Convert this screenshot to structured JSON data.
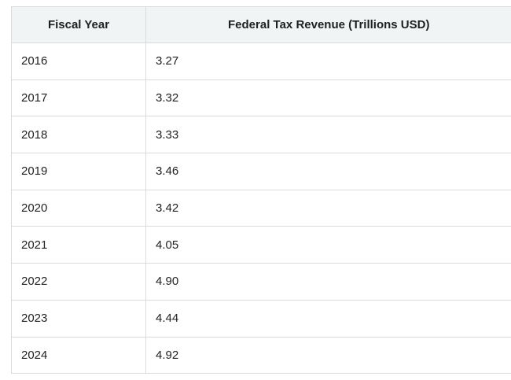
{
  "table": {
    "headers": [
      "Fiscal Year",
      "Federal Tax Revenue (Trillions USD)"
    ],
    "rows": [
      [
        "2016",
        "3.27"
      ],
      [
        "2017",
        "3.32"
      ],
      [
        "2018",
        "3.33"
      ],
      [
        "2019",
        "3.46"
      ],
      [
        "2020",
        "3.42"
      ],
      [
        "2021",
        "4.05"
      ],
      [
        "2022",
        "4.90"
      ],
      [
        "2023",
        "4.44"
      ],
      [
        "2024",
        "4.92"
      ]
    ]
  }
}
